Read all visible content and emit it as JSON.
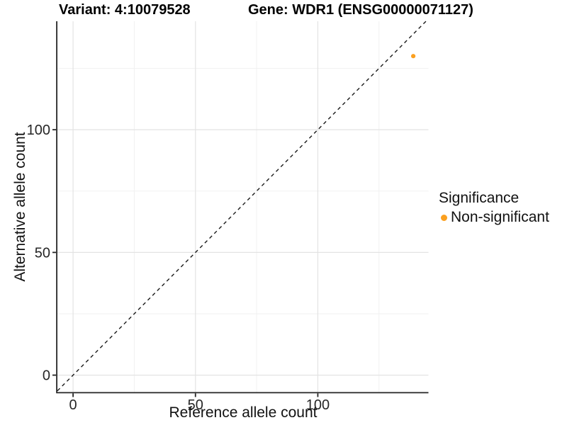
{
  "title": {
    "variant": "Variant: 4:10079528",
    "gene": "Gene: WDR1 (ENSG00000071127)"
  },
  "colors": {
    "background": "#FFFFFF",
    "point": "#FBA01F",
    "grid_major": "#E3E3E3",
    "grid_minor": "#F1F1F1",
    "axis_line": "#252525",
    "tick_mark": "#252525",
    "tick_text": "#262626",
    "identity_line": "#1A1A1A",
    "title_text": "#000000"
  },
  "chart_data": {
    "type": "scatter",
    "title": "Variant: 4:10079528        Gene: WDR1 (ENSG00000071127)",
    "xlabel": "Reference allele count",
    "ylabel": "Alternative allele count",
    "xlim": [
      -6.4,
      145.2
    ],
    "ylim": [
      -6.9,
      144.2
    ],
    "x_ticks": [
      0,
      50,
      100
    ],
    "y_ticks": [
      0,
      50,
      100
    ],
    "x_minor_ticks": [
      25,
      75,
      125
    ],
    "y_minor_ticks": [
      25,
      75,
      125
    ],
    "grid": true,
    "points": [
      {
        "x": 139,
        "y": 130,
        "series": "Non-significant"
      }
    ],
    "reference_line": {
      "kind": "identity y=x",
      "style": "dashed",
      "color": "#1A1A1A"
    },
    "legend": {
      "position": "right",
      "title": "Significance",
      "items": [
        {
          "label": "Non-significant",
          "color": "#FBA01F"
        }
      ]
    }
  }
}
